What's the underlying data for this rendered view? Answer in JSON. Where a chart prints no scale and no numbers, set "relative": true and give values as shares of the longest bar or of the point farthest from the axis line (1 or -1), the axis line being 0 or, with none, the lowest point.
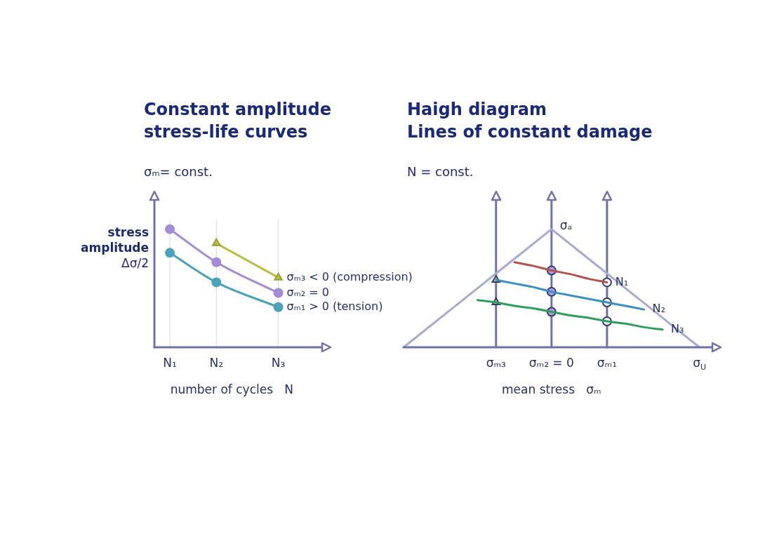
{
  "chart_data": [
    {
      "type": "line",
      "title": "Constant amplitude\nstress-life curves",
      "subtitle": "σₘ= const.",
      "xlabel": "number of cycles   N",
      "ylabel": "stress amplitude Δσ/2",
      "relative": true,
      "grid": "x",
      "categories": [
        null,
        "N₁",
        null,
        null,
        "N₂",
        null,
        null,
        null,
        "N₃",
        null,
        null
      ],
      "series": [
        {
          "name": "σₘ₃ < 0 (compression)",
          "color": "#b8c046",
          "marker": "triangle",
          "values": [
            null,
            null,
            null,
            null,
            0.88,
            null,
            null,
            null,
            0.59,
            null,
            null
          ]
        },
        {
          "name": "σₘ₂ = 0",
          "color": "#a38bd6",
          "marker": "circle",
          "values": [
            null,
            1,
            null,
            null,
            0.72,
            null,
            null,
            null,
            0.46,
            null,
            null
          ]
        },
        {
          "name": "σₘ₁ > 0 (tension)",
          "color": "#4aa2bb",
          "marker": "circle",
          "values": [
            null,
            0.8,
            null,
            null,
            0.55,
            null,
            null,
            null,
            0.34,
            null,
            null
          ]
        }
      ]
    },
    {
      "type": "line",
      "title": "Haigh diagram\nLines of constant damage",
      "subtitle": "N = const.",
      "xlabel": "mean stress   σₘ",
      "relative": true,
      "categories": [
        null,
        null,
        null,
        null,
        null,
        "σₘ₃",
        null,
        null,
        "σₘ₂ = 0",
        null,
        null,
        "σₘ₁",
        null,
        null,
        null,
        null,
        "σ$_{U}$"
      ],
      "annotations": [
        {
          "text": "σₐ",
          "x": "σₘ₂ = 0",
          "y": 1
        }
      ],
      "ref_lines": [
        {
          "axis": "x",
          "value": "σₘ₃",
          "color": "#6f73ad"
        },
        {
          "axis": "x",
          "value": "σₘ₂ = 0",
          "color": "#6f73ad"
        },
        {
          "axis": "x",
          "value": "σₘ₁",
          "color": "#6f73ad"
        }
      ],
      "series": [
        {
          "color": "#a9abd2",
          "marker": "none",
          "values": [
            0,
            0.125,
            0.25,
            0.375,
            0.5,
            0.625,
            0.75,
            0.875,
            1,
            0.875,
            0.75,
            0.625,
            0.5,
            0.375,
            0.25,
            0.125,
            0
          ]
        },
        {
          "name": "N₁",
          "color": "#b5524a",
          "marker": "none",
          "values": [
            null,
            null,
            null,
            null,
            null,
            null,
            0.72,
            0.69,
            0.65,
            0.62,
            0.58,
            0.55,
            null,
            null,
            null,
            null,
            null
          ]
        },
        {
          "name": "N₂",
          "color": "#3a8fc4",
          "marker": "none",
          "values": [
            null,
            null,
            null,
            null,
            null,
            0.57,
            0.54,
            0.51,
            0.47,
            0.44,
            0.41,
            0.38,
            0.35,
            0.32,
            null,
            null,
            null
          ]
        },
        {
          "name": "N₃",
          "color": "#2e9e5a",
          "marker": "none",
          "values": [
            null,
            null,
            null,
            null,
            0.4,
            0.38,
            0.35,
            0.33,
            0.3,
            0.27,
            0.25,
            0.22,
            0.2,
            0.17,
            0.15,
            null,
            null
          ]
        },
        {
          "type": "scatter",
          "marker": "circle",
          "values": [
            null,
            null,
            null,
            null,
            null,
            null,
            null,
            null,
            0.65,
            null,
            null,
            0.55,
            null,
            null,
            null,
            null,
            null
          ],
          "colors": [
            null,
            null,
            null,
            null,
            null,
            null,
            null,
            null,
            "#b69be0",
            null,
            null,
            "#ffffff",
            null,
            null,
            null,
            null,
            null
          ]
        },
        {
          "type": "scatter",
          "marker": "circle",
          "values": [
            null,
            null,
            null,
            null,
            null,
            null,
            null,
            null,
            0.47,
            null,
            null,
            0.38,
            null,
            null,
            null,
            null,
            null
          ],
          "colors": [
            null,
            null,
            null,
            null,
            null,
            null,
            null,
            null,
            "#b69be0",
            null,
            null,
            "#ffffff",
            null,
            null,
            null,
            null,
            null
          ]
        },
        {
          "type": "scatter",
          "marker": "circle",
          "values": [
            null,
            null,
            null,
            null,
            null,
            null,
            null,
            null,
            0.3,
            null,
            null,
            0.22,
            null,
            null,
            null,
            null,
            null
          ],
          "colors": [
            null,
            null,
            null,
            null,
            null,
            null,
            null,
            null,
            "#b69be0",
            null,
            null,
            "#ffffff",
            null,
            null,
            null,
            null,
            null
          ]
        },
        {
          "type": "scatter",
          "marker": "triangle",
          "color": "#e2e23c",
          "values": [
            null,
            null,
            null,
            null,
            null,
            0.57,
            null,
            null,
            null,
            null,
            null,
            null,
            null,
            null,
            null,
            null,
            null
          ]
        },
        {
          "type": "scatter",
          "marker": "triangle",
          "color": "#e2e23c",
          "values": [
            null,
            null,
            null,
            null,
            null,
            0.38,
            null,
            null,
            null,
            null,
            null,
            null,
            null,
            null,
            null,
            null,
            null
          ]
        }
      ]
    }
  ]
}
